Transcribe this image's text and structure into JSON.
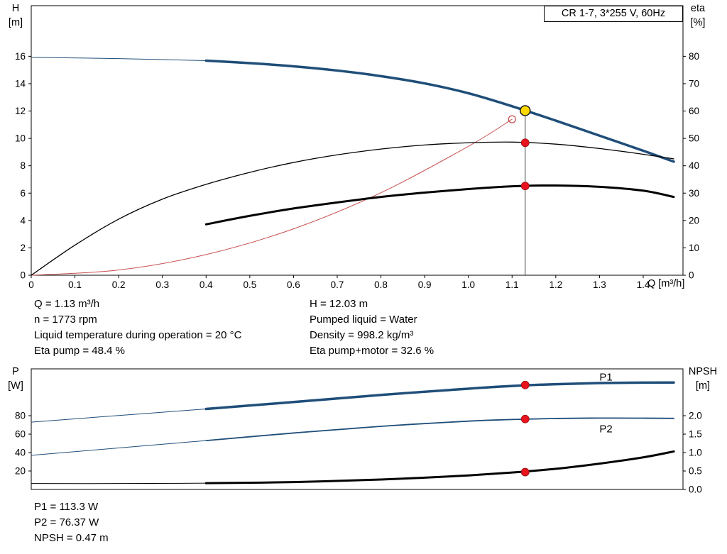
{
  "colors": {
    "curve_blue": "#1f4e79",
    "curve_black": "#000000",
    "system_red": "#c85050",
    "dot_red": "#e8131d",
    "dot_yellow": "#ffd800"
  },
  "operating_data": {
    "q": "Q = 1.13 m³/h",
    "n": "n = 1773 rpm",
    "liquid_temp": "Liquid temperature during operation = 20 °C",
    "eta_pump": "Eta pump = 48.4 %",
    "h": "H = 12.03 m",
    "pumped_liquid": "Pumped liquid = Water",
    "density": "Density = 998.2 kg/m³",
    "eta_pump_motor": "Eta pump+motor = 32.6 %"
  },
  "power_data": {
    "p1": "P1 = 113.3 W",
    "p2": "P2 = 76.37 W",
    "npsh": "NPSH = 0.47 m"
  },
  "chart_data": [
    {
      "type": "line",
      "name": "hq-eta-chart",
      "title": "CR 1-7, 3*255 V, 60Hz",
      "x": {
        "label": "Q [m³/h]",
        "min": 0,
        "plot_max": 1.491,
        "ticks": [
          [
            0,
            "0"
          ],
          [
            0.1,
            "0.1"
          ],
          [
            0.2,
            "0.2"
          ],
          [
            0.3,
            "0.3"
          ],
          [
            0.4,
            "0.4"
          ],
          [
            0.5,
            "0.5"
          ],
          [
            0.6,
            "0.6"
          ],
          [
            0.7,
            "0.7"
          ],
          [
            0.8,
            "0.8"
          ],
          [
            0.9,
            "0.9"
          ],
          [
            1,
            "1.0"
          ],
          [
            1.1,
            "1.1"
          ],
          [
            1.2,
            "1.2"
          ],
          [
            1.3,
            "1.3"
          ],
          [
            1.4,
            "1.4"
          ]
        ]
      },
      "y_left": {
        "title": "H",
        "unit": "[m]",
        "min": 0,
        "plot_max": 19.7,
        "ticks": [
          [
            0,
            "0"
          ],
          [
            2,
            "2"
          ],
          [
            4,
            "4"
          ],
          [
            6,
            "6"
          ],
          [
            8,
            "8"
          ],
          [
            10,
            "10"
          ],
          [
            12,
            "12"
          ],
          [
            14,
            "14"
          ],
          [
            16,
            "16"
          ]
        ]
      },
      "y_right": {
        "title": "eta",
        "unit": "[%]",
        "min": 0,
        "plot_max": 98.5,
        "ticks": [
          [
            0,
            "0"
          ],
          [
            10,
            "10"
          ],
          [
            20,
            "20"
          ],
          [
            30,
            "30"
          ],
          [
            40,
            "40"
          ],
          [
            50,
            "50"
          ],
          [
            60,
            "60"
          ],
          [
            70,
            "70"
          ],
          [
            80,
            "80"
          ]
        ]
      },
      "guide_line": {
        "x": 1.13,
        "from": 0,
        "to": 12.03
      },
      "series": [
        {
          "name": "system-curve",
          "axis": "left",
          "color": "#c85050",
          "width": 1,
          "points": [
            [
              0,
              0
            ],
            [
              0.2,
              0.38
            ],
            [
              0.4,
              1.51
            ],
            [
              0.6,
              3.39
            ],
            [
              0.8,
              6.03
            ],
            [
              1,
              9.42
            ],
            [
              1.1,
              11.4
            ]
          ]
        },
        {
          "name": "pump-curve-low-flow",
          "axis": "left",
          "color": "#1f4e79",
          "width": 1,
          "points": [
            [
              0,
              15.92
            ],
            [
              0.2,
              15.83
            ],
            [
              0.4,
              15.68
            ]
          ]
        },
        {
          "name": "pump-curve",
          "axis": "left",
          "color": "#1f4e79",
          "width": 3.5,
          "points": [
            [
              0.4,
              15.68
            ],
            [
              0.5,
              15.5
            ],
            [
              0.6,
              15.27
            ],
            [
              0.7,
              14.96
            ],
            [
              0.8,
              14.55
            ],
            [
              0.9,
              14.02
            ],
            [
              1,
              13.3
            ],
            [
              1.1,
              12.35
            ],
            [
              1.2,
              11.3
            ],
            [
              1.3,
              10.2
            ],
            [
              1.4,
              9.1
            ],
            [
              1.47,
              8.3
            ]
          ]
        },
        {
          "name": "eta-pump-curve",
          "axis": "right",
          "color": "#000000",
          "width": 1.3,
          "points": [
            [
              0,
              0
            ],
            [
              0.1,
              11
            ],
            [
              0.2,
              20.5
            ],
            [
              0.3,
              27.8
            ],
            [
              0.4,
              33.2
            ],
            [
              0.5,
              37.6
            ],
            [
              0.6,
              41.2
            ],
            [
              0.7,
              44
            ],
            [
              0.8,
              46.1
            ],
            [
              0.9,
              47.6
            ],
            [
              1,
              48.4
            ],
            [
              1.1,
              48.65
            ],
            [
              1.2,
              47.9
            ],
            [
              1.3,
              46.3
            ],
            [
              1.4,
              44.2
            ],
            [
              1.47,
              42.5
            ]
          ]
        },
        {
          "name": "eta-pump-motor-curve",
          "axis": "right",
          "color": "#000000",
          "width": 3,
          "points": [
            [
              0.4,
              18.6
            ],
            [
              0.5,
              21.7
            ],
            [
              0.6,
              24.4
            ],
            [
              0.7,
              26.6
            ],
            [
              0.8,
              28.6
            ],
            [
              0.9,
              30.2
            ],
            [
              1,
              31.5
            ],
            [
              1.1,
              32.5
            ],
            [
              1.2,
              32.8
            ],
            [
              1.3,
              32.3
            ],
            [
              1.4,
              30.9
            ],
            [
              1.47,
              28.6
            ]
          ]
        }
      ],
      "markers": [
        {
          "name": "duty-point",
          "style": "yellow-dot",
          "axis": "left",
          "x": 1.13,
          "y": 12.03,
          "interactable": true
        },
        {
          "name": "system-curve-point",
          "style": "open-red",
          "axis": "left",
          "x": 1.1,
          "y": 11.4,
          "interactable": false
        },
        {
          "name": "eta-pump-point",
          "style": "red-dot",
          "axis": "right",
          "x": 1.13,
          "y": 48.4,
          "interactable": false
        },
        {
          "name": "eta-pump-motor-point",
          "style": "red-dot",
          "axis": "right",
          "x": 1.13,
          "y": 32.6,
          "interactable": false
        }
      ]
    },
    {
      "type": "line",
      "name": "power-npsh-chart",
      "title": "",
      "x": {
        "label": "",
        "min": 0,
        "plot_max": 1.491,
        "ticks": []
      },
      "y_left": {
        "title": "P",
        "unit": "[W]",
        "min": 0,
        "plot_max": 130.8,
        "ticks": [
          [
            20,
            "20"
          ],
          [
            40,
            "40"
          ],
          [
            60,
            "60"
          ],
          [
            80,
            "80"
          ]
        ]
      },
      "y_right": {
        "title": "NPSH",
        "unit": "[m]",
        "min": 0,
        "plot_max": 3.27,
        "ticks": [
          [
            0,
            "0.0"
          ],
          [
            0.5,
            "0.5"
          ],
          [
            1,
            "1.0"
          ],
          [
            1.5,
            "1.5"
          ],
          [
            2,
            "2.0"
          ]
        ]
      },
      "series": [
        {
          "name": "p1-curve-low-flow",
          "axis": "left",
          "color": "#1f4e79",
          "width": 1,
          "points": [
            [
              0,
              73
            ],
            [
              0.2,
              80.2
            ],
            [
              0.4,
              87.3
            ]
          ]
        },
        {
          "name": "p1-curve",
          "axis": "left",
          "color": "#1f4e79",
          "width": 3.5,
          "points": [
            [
              0.4,
              87.3
            ],
            [
              0.6,
              94.8
            ],
            [
              0.8,
              102.5
            ],
            [
              1,
              109.3
            ],
            [
              1.1,
              112.2
            ],
            [
              1.2,
              114.2
            ],
            [
              1.3,
              115.4
            ],
            [
              1.4,
              115.9
            ],
            [
              1.47,
              116
            ]
          ]
        },
        {
          "name": "p2-curve-low-flow",
          "axis": "left",
          "color": "#1f4e79",
          "width": 1,
          "points": [
            [
              0,
              37
            ],
            [
              0.2,
              45
            ],
            [
              0.4,
              53
            ]
          ]
        },
        {
          "name": "p2-curve",
          "axis": "left",
          "color": "#1f4e79",
          "width": 1.8,
          "points": [
            [
              0.4,
              53
            ],
            [
              0.6,
              61.2
            ],
            [
              0.8,
              68.5
            ],
            [
              1,
              74.1
            ],
            [
              1.1,
              75.9
            ],
            [
              1.2,
              77
            ],
            [
              1.3,
              77.4
            ],
            [
              1.4,
              77.3
            ],
            [
              1.47,
              77.1
            ]
          ]
        },
        {
          "name": "npsh-curve-low-flow",
          "axis": "right",
          "color": "#000000",
          "width": 1,
          "points": [
            [
              0,
              0.16
            ],
            [
              0.2,
              0.16
            ],
            [
              0.4,
              0.17
            ]
          ]
        },
        {
          "name": "npsh-curve",
          "axis": "right",
          "color": "#000000",
          "width": 3,
          "points": [
            [
              0.4,
              0.17
            ],
            [
              0.6,
              0.2
            ],
            [
              0.8,
              0.27
            ],
            [
              0.9,
              0.32
            ],
            [
              1,
              0.38
            ],
            [
              1.1,
              0.46
            ],
            [
              1.2,
              0.56
            ],
            [
              1.3,
              0.7
            ],
            [
              1.4,
              0.87
            ],
            [
              1.47,
              1.03
            ]
          ]
        }
      ],
      "series_labels": [
        {
          "text": "P1",
          "x": 1.3,
          "y": 118,
          "axis": "left",
          "color": "#1f4e79"
        },
        {
          "text": "P2",
          "x": 1.3,
          "y": 62,
          "axis": "left",
          "color": "#1f4e79"
        }
      ],
      "markers": [
        {
          "name": "p1-point",
          "style": "red-dot",
          "axis": "left",
          "x": 1.13,
          "y": 113.3,
          "interactable": false
        },
        {
          "name": "p2-point",
          "style": "red-dot",
          "axis": "left",
          "x": 1.13,
          "y": 76.37,
          "interactable": false
        },
        {
          "name": "npsh-point",
          "style": "red-dot",
          "axis": "right",
          "x": 1.13,
          "y": 0.47,
          "interactable": false
        }
      ]
    }
  ]
}
